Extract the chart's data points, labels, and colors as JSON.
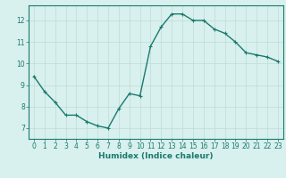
{
  "x": [
    0,
    1,
    2,
    3,
    4,
    5,
    6,
    7,
    8,
    9,
    10,
    11,
    12,
    13,
    14,
    15,
    16,
    17,
    18,
    19,
    20,
    21,
    22,
    23
  ],
  "y": [
    9.4,
    8.7,
    8.2,
    7.6,
    7.6,
    7.3,
    7.1,
    7.0,
    7.9,
    8.6,
    8.5,
    10.8,
    11.7,
    12.3,
    12.3,
    12.0,
    12.0,
    11.6,
    11.4,
    11.0,
    10.5,
    10.4,
    10.3,
    10.1
  ],
  "line_color": "#1a7a6e",
  "marker": "+",
  "marker_size": 3,
  "background_color": "#d8f0ee",
  "grid_color": "#c0dbd8",
  "xlabel": "Humidex (Indice chaleur)",
  "xlim": [
    -0.5,
    23.5
  ],
  "ylim": [
    6.5,
    12.7
  ],
  "yticks": [
    7,
    8,
    9,
    10,
    11,
    12
  ],
  "xticks": [
    0,
    1,
    2,
    3,
    4,
    5,
    6,
    7,
    8,
    9,
    10,
    11,
    12,
    13,
    14,
    15,
    16,
    17,
    18,
    19,
    20,
    21,
    22,
    23
  ],
  "tick_color": "#1a7a6e",
  "label_fontsize": 6.5,
  "tick_fontsize": 5.5,
  "spine_color": "#1a7a6e",
  "line_width": 1.0
}
